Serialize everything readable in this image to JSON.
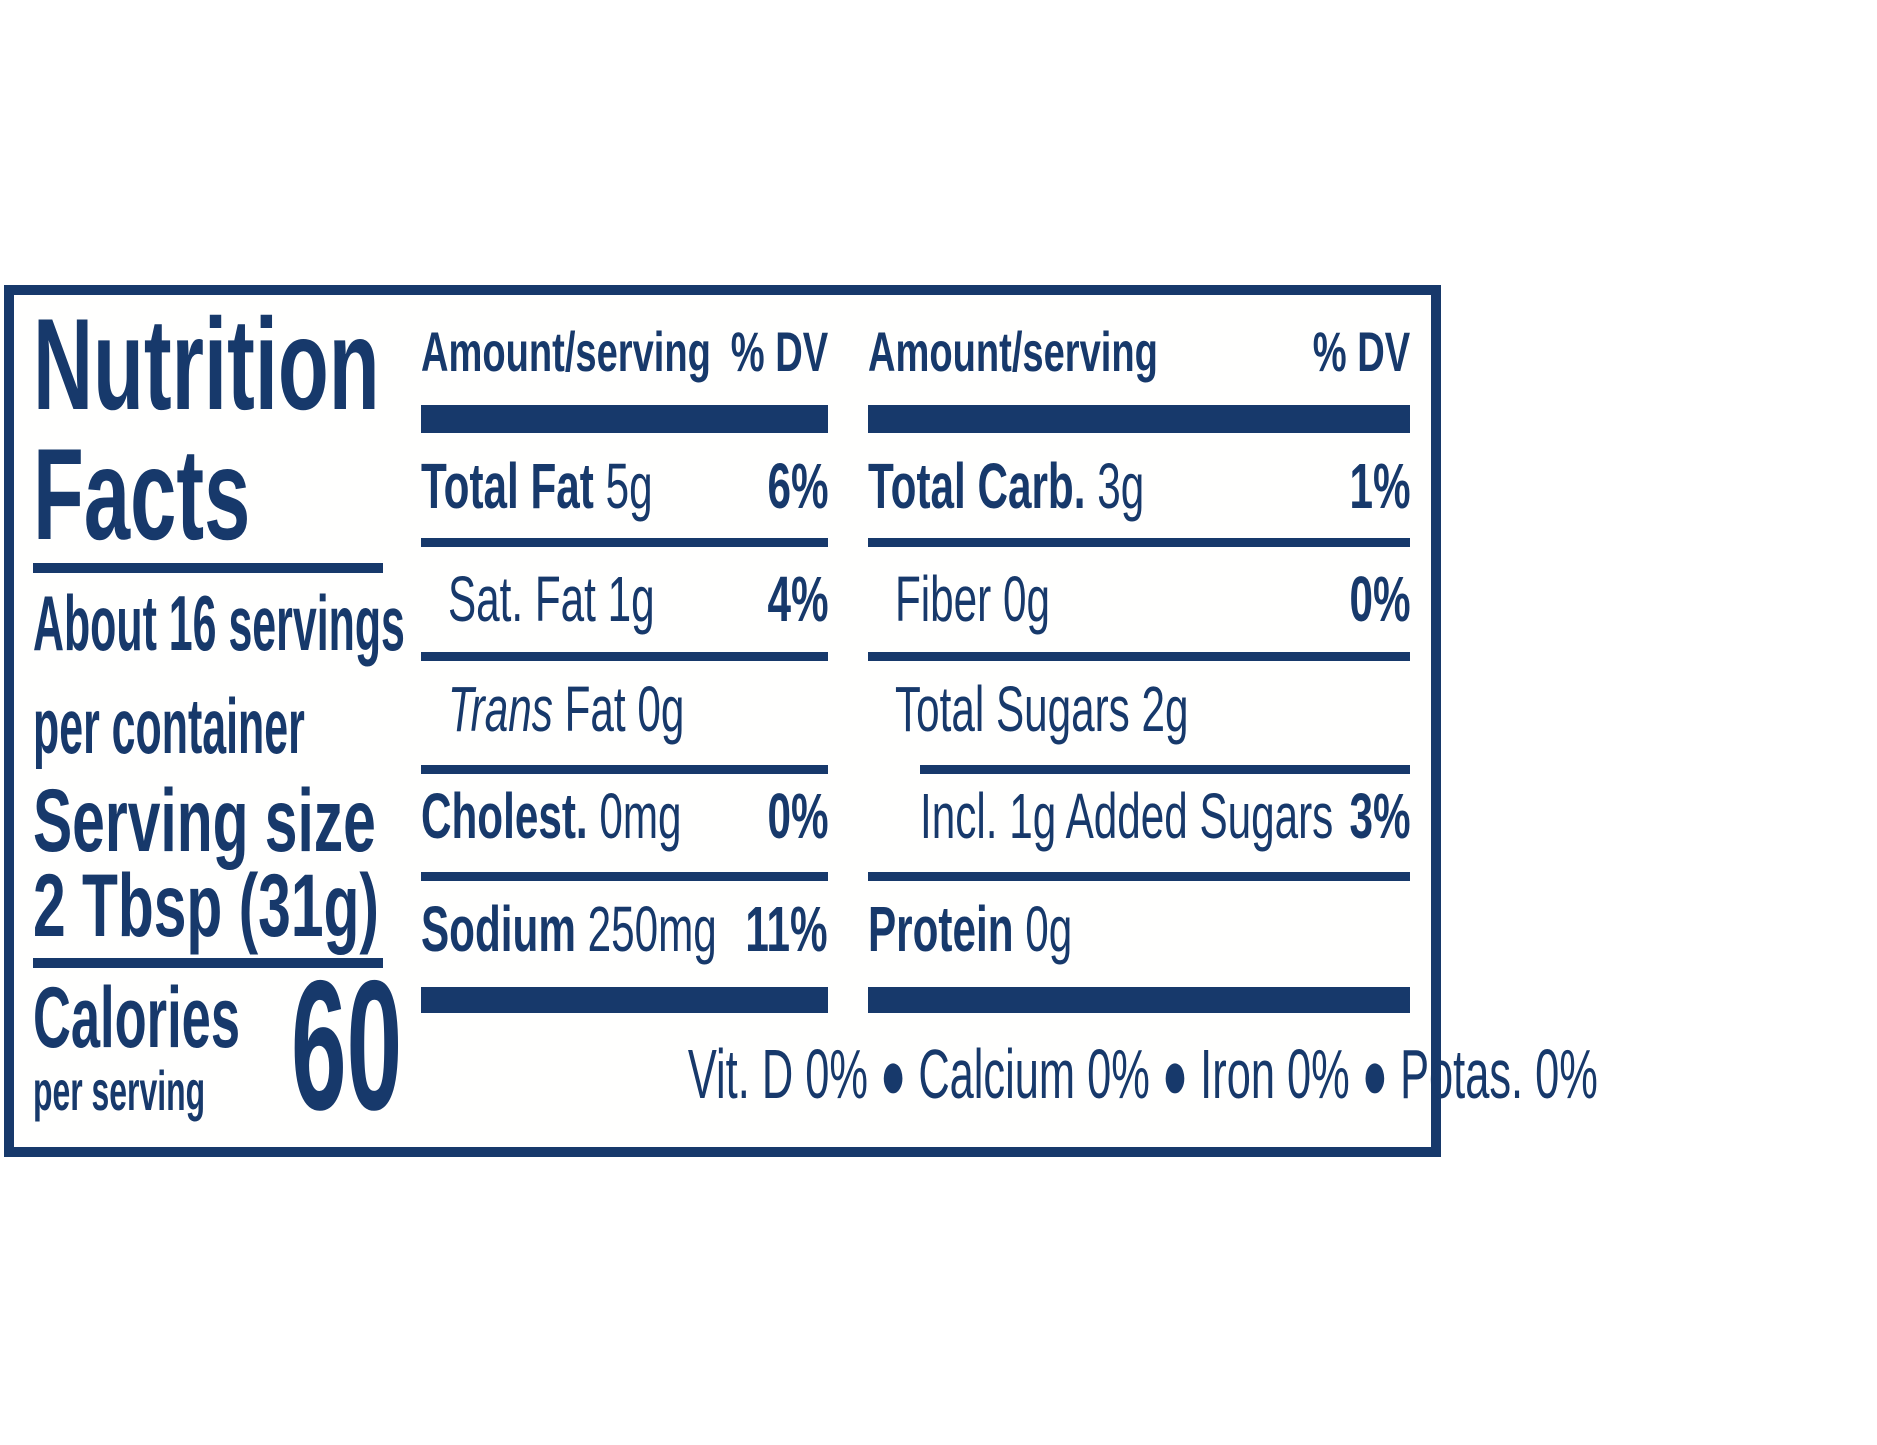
{
  "colors": {
    "navy": "#17396b",
    "background": "#ffffff"
  },
  "label": {
    "title": {
      "line1": "Nutrition",
      "line2": "Facts"
    },
    "servings": {
      "line1": "About 16 servings",
      "line2": "per container"
    },
    "serving_size": {
      "line1": "Serving size",
      "line2": "2 Tbsp (31g)"
    },
    "calories": {
      "label": "Calories",
      "sublabel": "per serving",
      "value": "60"
    },
    "column_header": {
      "amount": "Amount/serving",
      "dv": "% DV"
    },
    "left_rows": [
      {
        "bold": "Total Fat",
        "rest": " 5g",
        "dv": "6%"
      },
      {
        "rest": "Sat. Fat 1g",
        "dv": "4%"
      },
      {
        "italic": "Trans",
        "rest": " Fat 0g",
        "dv": ""
      },
      {
        "bold": "Cholest.",
        "rest": " 0mg",
        "dv": "0%"
      },
      {
        "bold": "Sodium",
        "rest": " 250mg",
        "dv": "11%"
      }
    ],
    "right_rows": [
      {
        "bold": "Total Carb.",
        "rest": " 3g",
        "dv": "1%"
      },
      {
        "rest": "Fiber 0g",
        "dv": "0%"
      },
      {
        "rest": "Total Sugars 2g",
        "dv": ""
      },
      {
        "rest": "Incl. 1g Added Sugars",
        "dv": "3%"
      },
      {
        "bold": "Protein",
        "rest": " 0g",
        "dv": ""
      }
    ],
    "vitamins_footer": "Vit. D 0% ● Calcium 0% ● Iron 0% ● Potas. 0%"
  }
}
